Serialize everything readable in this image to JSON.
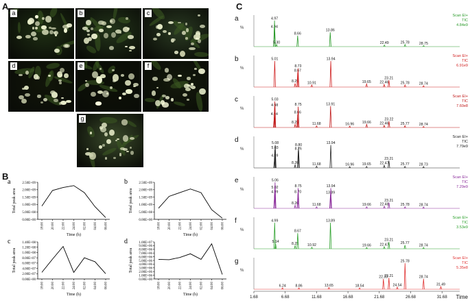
{
  "panels": {
    "A": "A",
    "B": "B",
    "C": "C"
  },
  "photos": [
    {
      "label": "a",
      "tone": "#1f2f14"
    },
    {
      "label": "b",
      "tone": "#23341a"
    },
    {
      "label": "c",
      "tone": "#2a3a22"
    },
    {
      "label": "d",
      "tone": "#111509"
    },
    {
      "label": "e",
      "tone": "#0d1107"
    },
    {
      "label": "f",
      "tone": "#141a0c"
    },
    {
      "label": "g",
      "tone": "#3a4a2a"
    }
  ],
  "line_charts": [
    {
      "label": "a",
      "ylabel": "Total peak area",
      "xlabel": "Time (h)",
      "x": [
        "18:00",
        "20:00",
        "22:00",
        "24:00",
        "02:00",
        "04:00",
        "06:00"
      ],
      "yticks": [
        "0.00E+00",
        "5.00E+08",
        "1.00E+09",
        "1.50E+09",
        "2.00E+09",
        "2.50E+09"
      ],
      "ylim": [
        0,
        2500000000
      ],
      "values": [
        900000000,
        1950000000,
        2150000000,
        2280000000,
        1800000000,
        850000000,
        120000000
      ]
    },
    {
      "label": "b",
      "ylabel": "Total peak area",
      "xlabel": "Time (h)",
      "x": [
        "18:00",
        "20:00",
        "22:00",
        "24:00",
        "02:00",
        "04:00",
        "06:00"
      ],
      "yticks": [
        "0.00E+00",
        "5.00E+08",
        "1.00E+09",
        "1.50E+09",
        "2.00E+09",
        "2.50E+09"
      ],
      "ylim": [
        0,
        2500000000
      ],
      "values": [
        750000000,
        1550000000,
        1800000000,
        2050000000,
        1800000000,
        650000000,
        80000000
      ]
    },
    {
      "label": "c",
      "ylabel": "Total peak area",
      "xlabel": "Time (h)",
      "x": [
        "18:00",
        "20:00",
        "22:00",
        "24:00",
        "02:00",
        "04:00",
        "06:00"
      ],
      "yticks": [
        "0.00E+00",
        "2.00E+07",
        "4.00E+07",
        "6.00E+07",
        "8.00E+07",
        "1.00E+08",
        "1.20E+08",
        "1.40E+08"
      ],
      "ylim": [
        0,
        140000000
      ],
      "values": [
        25000000,
        75000000,
        123000000,
        25000000,
        80000000,
        65000000,
        20000000
      ]
    },
    {
      "label": "d",
      "ylabel": "Total peak area",
      "xlabel": "Time (h)",
      "x": [
        "18:00",
        "20:00",
        "22:00",
        "24:00",
        "02:00",
        "04:00",
        "06:00"
      ],
      "yticks": [
        "0.00E+00",
        "1.00E+06",
        "2.00E+06",
        "3.00E+06",
        "4.00E+06",
        "5.00E+06",
        "6.00E+06",
        "7.00E+06",
        "8.00E+06",
        "9.00E+06",
        "1.00E+07"
      ],
      "ylim": [
        0,
        10000000
      ],
      "values": [
        5300000,
        5200000,
        5800000,
        6800000,
        5300000,
        9500000,
        1200000
      ]
    }
  ],
  "chromatograms": {
    "x_ticks": [
      "1.68",
      "6.68",
      "11.68",
      "16.68",
      "21.68",
      "26.68",
      "31.68"
    ],
    "x_label": "Time",
    "y_unit": "%",
    "xlim": [
      1.68,
      34.5
    ],
    "traces": [
      {
        "label": "a",
        "color": "#2a9a2a",
        "scan": "Scan EI+",
        "tic": "TIC",
        "intensity": "4.84e9",
        "peaks": [
          {
            "t": 4.94,
            "h": 68,
            "lab": "4.94"
          },
          {
            "t": 4.97,
            "h": 100,
            "lab": "4.97"
          },
          {
            "t": 5.3,
            "h": 8,
            "lab": "5.30"
          },
          {
            "t": 8.66,
            "h": 42,
            "lab": "8.66"
          },
          {
            "t": 13.86,
            "h": 55,
            "lab": "13.86"
          },
          {
            "t": 22.49,
            "h": 6,
            "lab": "22.49"
          },
          {
            "t": 25.78,
            "h": 8,
            "lab": "25.78"
          },
          {
            "t": 28.75,
            "h": 4,
            "lab": "28.75"
          }
        ]
      },
      {
        "label": "b",
        "color": "#d02020",
        "scan": "Scan EI+",
        "tic": "TIC",
        "intensity": "6.91e9",
        "peaks": [
          {
            "t": 5.01,
            "h": 100,
            "lab": "5.01"
          },
          {
            "t": 8.25,
            "h": 14,
            "lab": "8.25"
          },
          {
            "t": 8.67,
            "h": 55,
            "lab": "8.67"
          },
          {
            "t": 8.73,
            "h": 72,
            "lab": "8.73"
          },
          {
            "t": 10.91,
            "h": 8,
            "lab": "10.91"
          },
          {
            "t": 13.94,
            "h": 100,
            "lab": "13.94"
          },
          {
            "t": 19.65,
            "h": 12,
            "lab": "19.65"
          },
          {
            "t": 22.46,
            "h": 10,
            "lab": "22.46"
          },
          {
            "t": 23.21,
            "h": 26,
            "lab": "23.21"
          },
          {
            "t": 25.78,
            "h": 8,
            "lab": "25.78"
          },
          {
            "t": 28.74,
            "h": 5,
            "lab": "28.74"
          }
        ]
      },
      {
        "label": "c",
        "color": "#c01818",
        "scan": "Scan EI+",
        "tic": "TIC",
        "intensity": "7.60e8",
        "peaks": [
          {
            "t": 4.94,
            "h": 44,
            "lab": "4.94"
          },
          {
            "t": 4.98,
            "h": 78,
            "lab": "4.98"
          },
          {
            "t": 5.03,
            "h": 100,
            "lab": "5.03"
          },
          {
            "t": 8.25,
            "h": 12,
            "lab": "8.25"
          },
          {
            "t": 8.66,
            "h": 50,
            "lab": "8.66"
          },
          {
            "t": 8.75,
            "h": 80,
            "lab": "8.75"
          },
          {
            "t": 11.68,
            "h": 6,
            "lab": "11.68"
          },
          {
            "t": 13.91,
            "h": 82,
            "lab": "13.91"
          },
          {
            "t": 16.96,
            "h": 5,
            "lab": "16.96"
          },
          {
            "t": 19.66,
            "h": 12,
            "lab": "19.66"
          },
          {
            "t": 22.46,
            "h": 8,
            "lab": "22.46"
          },
          {
            "t": 23.22,
            "h": 24,
            "lab": "23.22"
          },
          {
            "t": 25.77,
            "h": 7,
            "lab": "25.77"
          },
          {
            "t": 28.74,
            "h": 4,
            "lab": "28.74"
          }
        ]
      },
      {
        "label": "d",
        "color": "#222222",
        "scan": "Scan EI+",
        "tic": "TIC",
        "intensity": "7.79e9",
        "peaks": [
          {
            "t": 4.99,
            "h": 40,
            "lab": "4.99"
          },
          {
            "t": 5.03,
            "h": 70,
            "lab": "5.03"
          },
          {
            "t": 5.08,
            "h": 88,
            "lab": "5.08"
          },
          {
            "t": 8.26,
            "h": 12,
            "lab": "8.26"
          },
          {
            "t": 8.76,
            "h": 66,
            "lab": "8.76"
          },
          {
            "t": 8.8,
            "h": 80,
            "lab": "8.80"
          },
          {
            "t": 11.68,
            "h": 7,
            "lab": "11.68"
          },
          {
            "t": 13.94,
            "h": 88,
            "lab": "13.94"
          },
          {
            "t": 16.96,
            "h": 5,
            "lab": "16.96"
          },
          {
            "t": 19.65,
            "h": 6,
            "lab": "19.65"
          },
          {
            "t": 22.47,
            "h": 10,
            "lab": "22.47"
          },
          {
            "t": 23.21,
            "h": 28,
            "lab": "23.21"
          },
          {
            "t": 25.77,
            "h": 6,
            "lab": "25.77"
          },
          {
            "t": 28.73,
            "h": 5,
            "lab": "28.73"
          }
        ]
      },
      {
        "label": "e",
        "color": "#8a2a9a",
        "scan": "Scan EI+",
        "tic": "TIC",
        "intensity": "7.29e9",
        "peaks": [
          {
            "t": 4.99,
            "h": 55,
            "lab": "4.99"
          },
          {
            "t": 5.02,
            "h": 72,
            "lab": "5.02"
          },
          {
            "t": 5.06,
            "h": 100,
            "lab": "5.06"
          },
          {
            "t": 8.26,
            "h": 12,
            "lab": "8.26"
          },
          {
            "t": 8.7,
            "h": 55,
            "lab": "8.70"
          },
          {
            "t": 8.75,
            "h": 78,
            "lab": "8.75"
          },
          {
            "t": 11.68,
            "h": 6,
            "lab": "11.68"
          },
          {
            "t": 13.89,
            "h": 52,
            "lab": "13.89"
          },
          {
            "t": 13.94,
            "h": 78,
            "lab": "13.94"
          },
          {
            "t": 19.66,
            "h": 6,
            "lab": "19.66"
          },
          {
            "t": 22.48,
            "h": 8,
            "lab": "22.48"
          },
          {
            "t": 23.21,
            "h": 22,
            "lab": "23.21"
          },
          {
            "t": 25.78,
            "h": 6,
            "lab": "25.78"
          },
          {
            "t": 28.74,
            "h": 5,
            "lab": "28.74"
          }
        ]
      },
      {
        "label": "f",
        "color": "#2aa02a",
        "scan": "Scan EI+",
        "tic": "TIC",
        "intensity": "3.53e9",
        "peaks": [
          {
            "t": 4.99,
            "h": 100,
            "lab": "4.99"
          },
          {
            "t": 5.14,
            "h": 20,
            "lab": "5.14"
          },
          {
            "t": 8.25,
            "h": 12,
            "lab": "8.25"
          },
          {
            "t": 8.67,
            "h": 60,
            "lab": "8.67"
          },
          {
            "t": 10.92,
            "h": 6,
            "lab": "10.92"
          },
          {
            "t": 13.89,
            "h": 100,
            "lab": "13.89"
          },
          {
            "t": 19.66,
            "h": 5,
            "lab": "19.66"
          },
          {
            "t": 22.47,
            "h": 8,
            "lab": "22.47"
          },
          {
            "t": 23.21,
            "h": 26,
            "lab": "23.21"
          },
          {
            "t": 25.77,
            "h": 14,
            "lab": "25.77"
          },
          {
            "t": 28.74,
            "h": 5,
            "lab": "28.74"
          }
        ]
      },
      {
        "label": "g",
        "color": "#e03030",
        "scan": "Scan EI+",
        "tic": "TIC",
        "intensity": "5.35e8",
        "peaks": [
          {
            "t": 6.24,
            "h": 5,
            "lab": "6.24"
          },
          {
            "t": 8.86,
            "h": 5,
            "lab": "8.86"
          },
          {
            "t": 13.65,
            "h": 7,
            "lab": "13.65"
          },
          {
            "t": 18.54,
            "h": 5,
            "lab": "18.54"
          },
          {
            "t": 22.33,
            "h": 40,
            "lab": "22.33"
          },
          {
            "t": 23.21,
            "h": 44,
            "lab": "23.21"
          },
          {
            "t": 24.54,
            "h": 8,
            "lab": "24.54"
          },
          {
            "t": 25.78,
            "h": 100,
            "lab": "25.78"
          },
          {
            "t": 28.74,
            "h": 40,
            "lab": "28.74"
          },
          {
            "t": 31.49,
            "h": 10,
            "lab": "31.49"
          }
        ]
      }
    ]
  }
}
